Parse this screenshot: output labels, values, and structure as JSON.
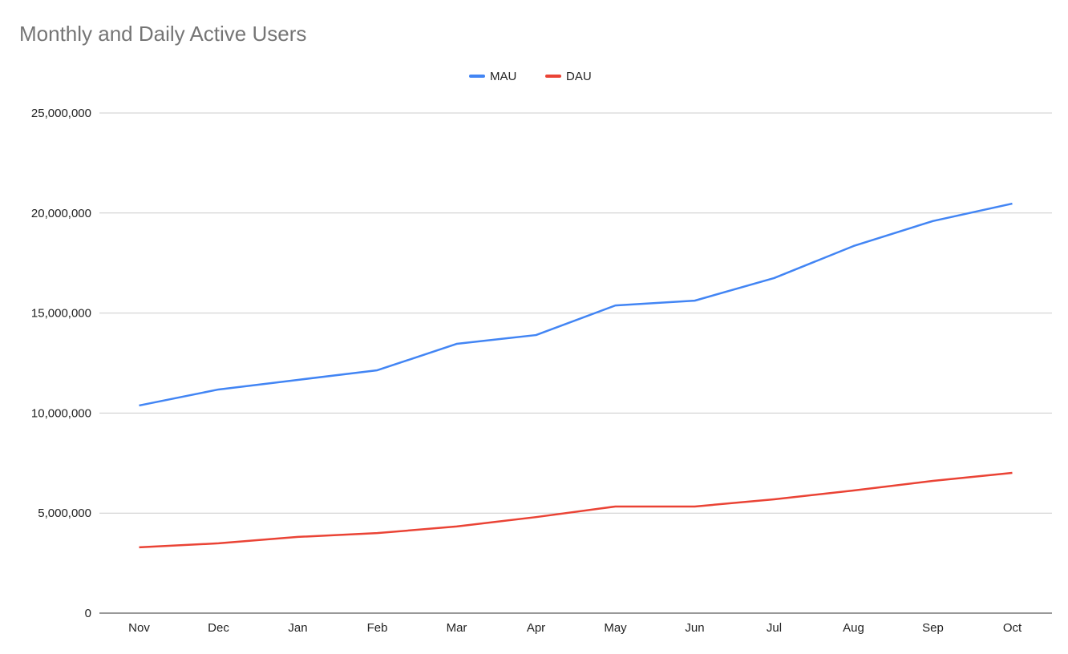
{
  "chart_data": {
    "type": "line",
    "title": "Monthly and Daily Active Users",
    "xlabel": "",
    "ylabel": "",
    "categories": [
      "Nov",
      "Dec",
      "Jan",
      "Feb",
      "Mar",
      "Apr",
      "May",
      "Jun",
      "Jul",
      "Aug",
      "Sep",
      "Oct"
    ],
    "ylim": [
      0,
      25000000
    ],
    "yticks": [
      0,
      5000000,
      10000000,
      15000000,
      20000000,
      25000000
    ],
    "ytick_labels": [
      "0",
      "5,000,000",
      "10,000,000",
      "15,000,000",
      "20,000,000",
      "25,000,000"
    ],
    "grid": true,
    "legend_position": "top-center",
    "series": [
      {
        "name": "MAU",
        "color": "#4285f4",
        "values": [
          10380000,
          11180000,
          11660000,
          12140000,
          13460000,
          13900000,
          15380000,
          15620000,
          16750000,
          18350000,
          19600000,
          20470000
        ]
      },
      {
        "name": "DAU",
        "color": "#ea4335",
        "values": [
          3290000,
          3490000,
          3810000,
          4000000,
          4330000,
          4800000,
          5330000,
          5330000,
          5690000,
          6130000,
          6610000,
          7010000
        ]
      }
    ]
  }
}
